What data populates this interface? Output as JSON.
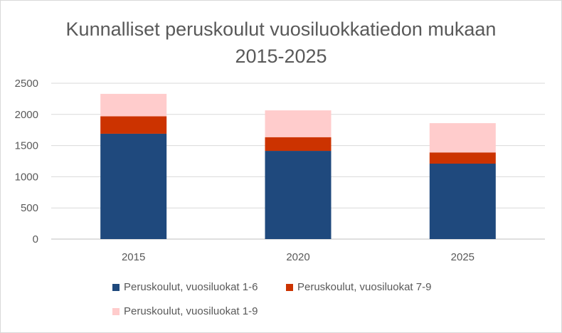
{
  "chart_data": {
    "type": "bar",
    "stacked": true,
    "title_line1": "Kunnalliset peruskoulut vuosiluokkatiedon mukaan",
    "title_line2": "2015-2025",
    "categories": [
      "2015",
      "2020",
      "2025"
    ],
    "series": [
      {
        "name": "Peruskoulut, vuosiluokat 1-6",
        "color": "#1f497d",
        "values": [
          1690,
          1415,
          1210
        ]
      },
      {
        "name": "Peruskoulut, vuosiluokat 7-9",
        "color": "#cc3300",
        "values": [
          280,
          220,
          180
        ]
      },
      {
        "name": "Peruskoulut, vuosiluokat 1-9",
        "color": "#ffcccc",
        "values": [
          360,
          430,
          470
        ]
      }
    ],
    "ylim": [
      0,
      2500
    ],
    "yticks": [
      "0",
      "500",
      "1000",
      "1500",
      "2000",
      "2500"
    ],
    "grid": true,
    "legend_position": "bottom"
  }
}
